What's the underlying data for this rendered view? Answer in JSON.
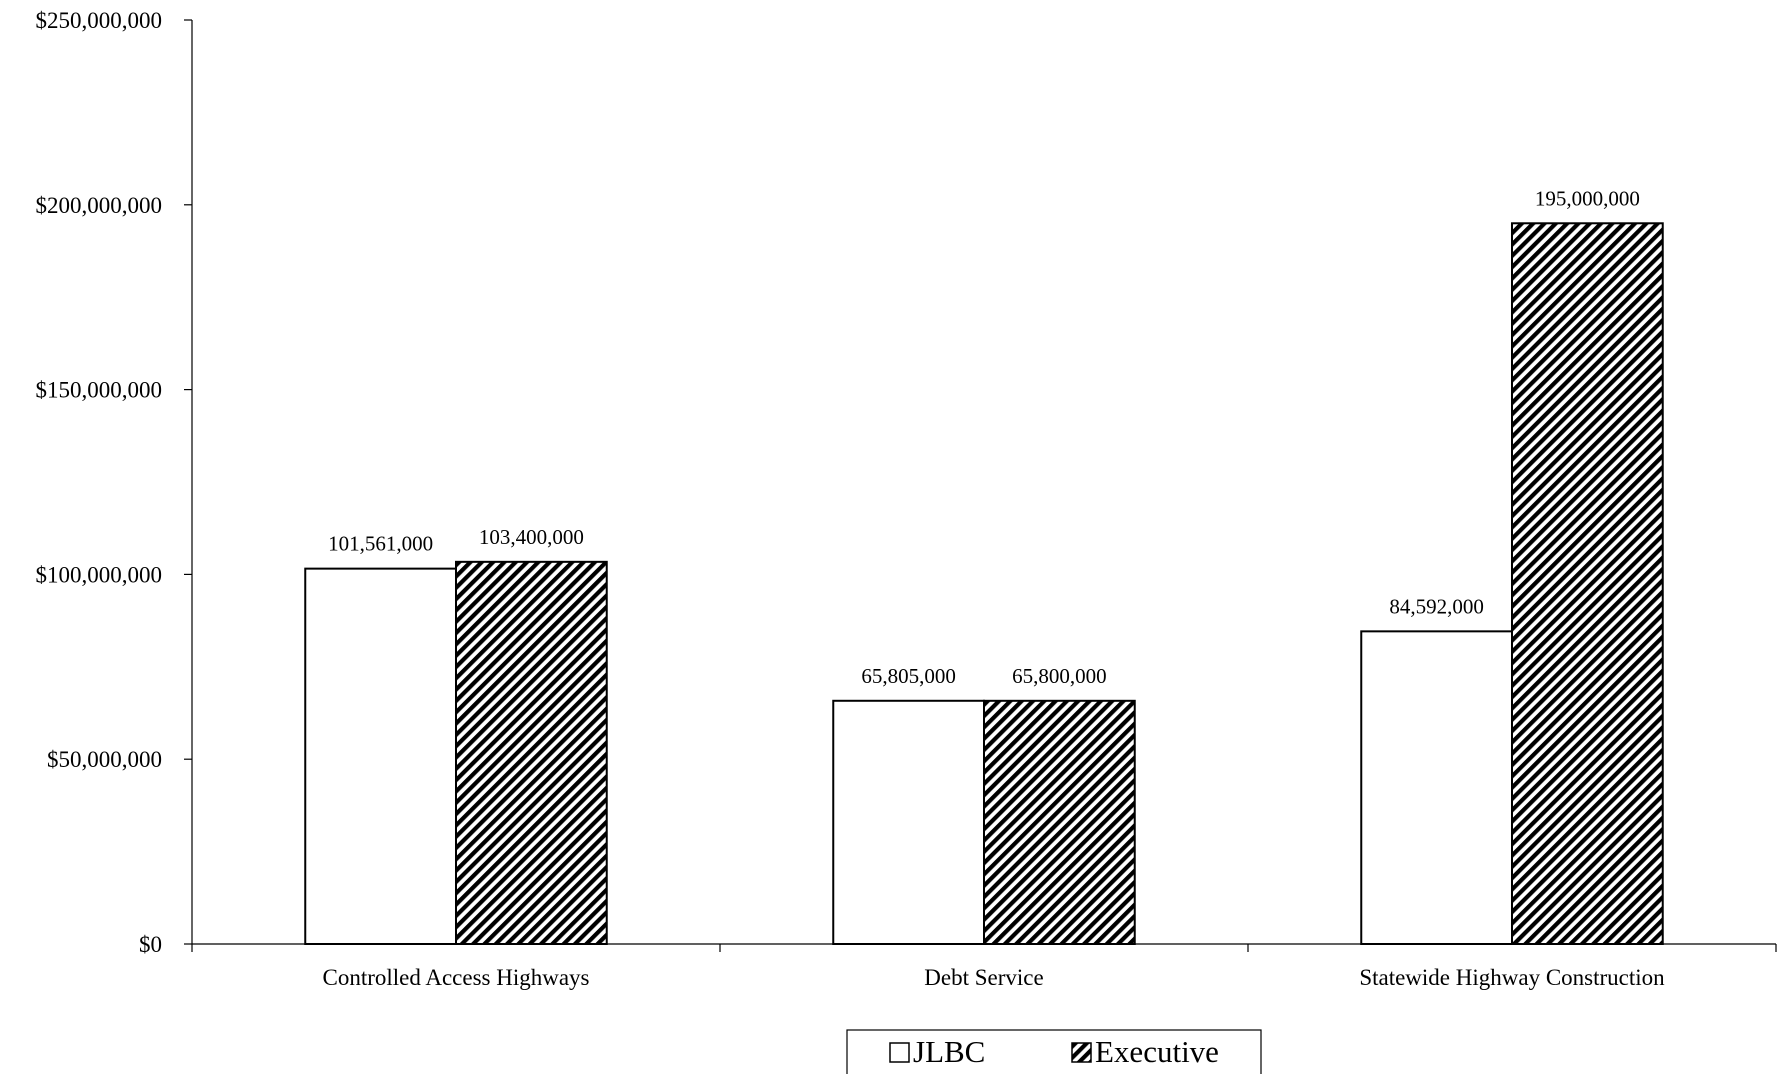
{
  "chart_data": {
    "type": "bar",
    "categories": [
      "Controlled Access Highways",
      "Debt Service",
      "Statewide Highway Construction"
    ],
    "series": [
      {
        "name": "JLBC",
        "values": [
          101561000,
          65805000,
          84592000
        ],
        "labels": [
          "101,561,000",
          "65,805,000",
          "84,592,000"
        ],
        "fill": "#ffffff",
        "pattern": "none"
      },
      {
        "name": "Executive",
        "values": [
          103400000,
          65800000,
          195000000
        ],
        "labels": [
          "103,400,000",
          "65,800,000",
          "195,000,000"
        ],
        "fill": "#000000",
        "pattern": "diagonal-hatch"
      }
    ],
    "ylim": [
      0,
      250000000
    ],
    "yticks": [
      0,
      50000000,
      100000000,
      150000000,
      200000000,
      250000000
    ],
    "ytick_labels": [
      "$0",
      "$50,000,000",
      "$100,000,000",
      "$150,000,000",
      "$200,000,000",
      "$250,000,000"
    ],
    "grid": false,
    "legend_position": "bottom-center",
    "colors": {
      "bar_stroke": "#000000",
      "axis": "#000000",
      "background": "#ffffff"
    }
  }
}
